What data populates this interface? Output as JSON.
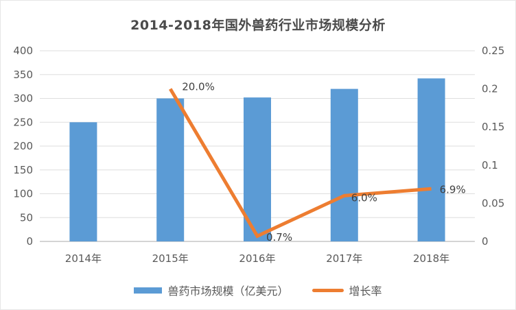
{
  "title": "2014-2018年国外兽药行业市场规模分析",
  "chart_data": {
    "type": "bar",
    "subtype": "combo-bar-line-dual-axis",
    "title": "2014-2018年国外兽药行业市场规模分析",
    "categories": [
      "2014年",
      "2015年",
      "2016年",
      "2017年",
      "2018年"
    ],
    "series": [
      {
        "name": "兽药市场规模（亿美元）",
        "type": "bar",
        "axis": "left",
        "color": "#5B9BD5",
        "values": [
          250,
          300,
          302,
          320,
          342
        ]
      },
      {
        "name": "增长率",
        "type": "line",
        "axis": "right",
        "color": "#ED7D31",
        "values": [
          null,
          0.2,
          0.007,
          0.06,
          0.069
        ],
        "point_labels": [
          "",
          "20.0%",
          "0.7%",
          "6.0%",
          "6.9%"
        ]
      }
    ],
    "left_axis": {
      "min": 0,
      "max": 400,
      "tick_labels": [
        "0",
        "50",
        "100",
        "150",
        "200",
        "250",
        "300",
        "350",
        "400"
      ]
    },
    "right_axis": {
      "min": 0,
      "max": 0.25,
      "tick_labels": [
        "0",
        "0.05",
        "0.1",
        "0.15",
        "0.2",
        "0.25"
      ]
    },
    "grid": true,
    "legend_position": "bottom"
  },
  "colors": {
    "bar": "#5B9BD5",
    "line": "#ED7D31",
    "axis_text": "#595959",
    "point_label_text": "#404040",
    "title_text": "#4a4a4a",
    "gridline": "#dedede",
    "baseline": "#d4d4d4"
  }
}
